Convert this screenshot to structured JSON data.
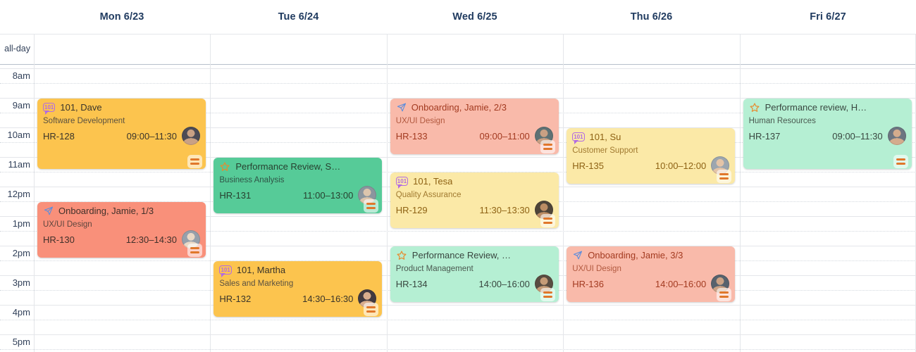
{
  "scheduler": {
    "view": "week-timeline",
    "day_headers": [
      "Mon 6/23",
      "Tue 6/24",
      "Wed 6/25",
      "Thu 6/26",
      "Fri 6/27"
    ],
    "time_labels": [
      "all-day",
      "8am",
      "9am",
      "10am",
      "11am",
      "12pm",
      "1pm",
      "2pm",
      "3pm",
      "4pm",
      "5pm"
    ],
    "icons": {
      "one-on-one": {
        "label": "101",
        "color": "#B26BE3"
      },
      "paper-plane": {
        "color": "#5E8EDC"
      },
      "star": {
        "color": "#E78A2E"
      },
      "priority-medium": {
        "color": "#E0772B"
      }
    },
    "variant_colors": {
      "amber": {
        "bg": "#FCC44E",
        "text": "#3A342A",
        "muted": "#5A5140"
      },
      "salmon": {
        "bg": "#F9907A",
        "text": "#40302A",
        "muted": "#5E463E"
      },
      "green": {
        "bg": "#56CB98",
        "text": "#27402F",
        "muted": "#2F5446"
      },
      "salmon-light": {
        "bg": "#F9BAAA",
        "text": "#A33B21",
        "muted": "#B2593F"
      },
      "yellow-light": {
        "bg": "#FBE9A7",
        "text": "#8E6214",
        "muted": "#A17A30"
      },
      "mint": {
        "bg": "#B5EFD3",
        "text": "#394740",
        "muted": "#4A5950"
      }
    },
    "events": [
      {
        "id": "HR-128",
        "day": 0,
        "title": "101, Dave",
        "subtitle": "Software Development",
        "time": "09:00–11:30",
        "start": 9,
        "end": 11.5,
        "variant": "amber",
        "icon": "one-on-one",
        "priority": "medium",
        "avatar": {
          "bg": "#4C4B55",
          "fg": "#C9A184"
        }
      },
      {
        "id": "HR-130",
        "day": 0,
        "title": "Onboarding, Jamie, 1/3",
        "subtitle": "UX/UI Design",
        "time": "12:30–14:30",
        "start": 12.5,
        "end": 14.5,
        "variant": "salmon",
        "icon": "paper-plane",
        "priority": "medium",
        "avatar": {
          "bg": "#97A0AB",
          "fg": "#EAD9C6"
        }
      },
      {
        "id": "HR-131",
        "day": 1,
        "title": "Performance Review, S…",
        "subtitle": "Business Analysis",
        "time": "11:00–13:00",
        "start": 11,
        "end": 13,
        "variant": "green",
        "icon": "star",
        "priority": "medium",
        "avatar": {
          "bg": "#8B959E",
          "fg": "#DCC5AD"
        }
      },
      {
        "id": "HR-132",
        "day": 1,
        "title": "101, Martha",
        "subtitle": "Sales and Marketing",
        "time": "14:30–16:30",
        "start": 14.5,
        "end": 16.5,
        "variant": "amber",
        "icon": "one-on-one",
        "priority": "medium",
        "avatar": {
          "bg": "#413A40",
          "fg": "#D8AD8D"
        }
      },
      {
        "id": "HR-133",
        "day": 2,
        "title": "Onboarding, Jamie, 2/3",
        "subtitle": "UX/UI Design",
        "time": "09:00–11:00",
        "start": 9,
        "end": 11,
        "variant": "salmon-light",
        "icon": "paper-plane",
        "priority": "medium",
        "avatar": {
          "bg": "#5E7174",
          "fg": "#C9A083"
        }
      },
      {
        "id": "HR-129",
        "day": 2,
        "title": "101, Tesa",
        "subtitle": "Quality Assurance",
        "time": "11:30–13:30",
        "start": 11.5,
        "end": 13.5,
        "variant": "yellow-light",
        "icon": "one-on-one",
        "priority": "medium",
        "avatar": {
          "bg": "#4E4439",
          "fg": "#BB8C64"
        }
      },
      {
        "id": "HR-134",
        "day": 2,
        "title": "Performance Review, …",
        "subtitle": "Product Management",
        "time": "14:00–16:00",
        "start": 14,
        "end": 16,
        "variant": "mint",
        "icon": "star",
        "priority": "medium",
        "avatar": {
          "bg": "#594C41",
          "fg": "#C59B77"
        }
      },
      {
        "id": "HR-135",
        "day": 3,
        "title": "101, Su",
        "subtitle": "Customer Support",
        "time": "10:00–12:00",
        "start": 10,
        "end": 12,
        "variant": "yellow-light",
        "icon": "one-on-one",
        "priority": "medium",
        "avatar": {
          "bg": "#9CA6AF",
          "fg": "#E4C4A7"
        }
      },
      {
        "id": "HR-136",
        "day": 3,
        "title": "Onboarding, Jamie, 3/3",
        "subtitle": "UX/UI Design",
        "time": "14:00–16:00",
        "start": 14,
        "end": 16,
        "variant": "salmon-light",
        "icon": "paper-plane",
        "priority": "medium",
        "avatar": {
          "bg": "#57626D",
          "fg": "#CBA285"
        }
      },
      {
        "id": "HR-137",
        "day": 4,
        "title": "Performance review, H…",
        "subtitle": "Human Resources",
        "time": "09:00–11:30",
        "start": 9,
        "end": 11.5,
        "variant": "mint",
        "icon": "star",
        "priority": "medium",
        "avatar": {
          "bg": "#6C7581",
          "fg": "#D4AC8D"
        }
      }
    ]
  }
}
